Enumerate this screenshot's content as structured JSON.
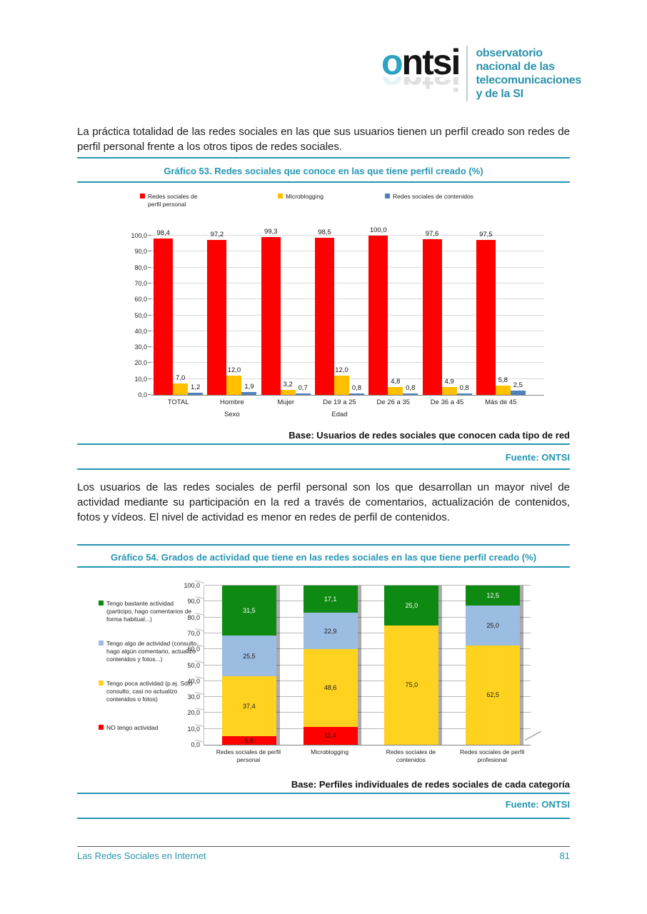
{
  "header": {
    "logo": {
      "brand_accent": "o",
      "brand_rest": "ntsi",
      "tagline_line1": "observatorio",
      "tagline_line2": "nacional de las",
      "tagline_line3": "telecomunicaciones",
      "tagline_line4": "y de la SI"
    }
  },
  "paragraphs": {
    "p1": "La práctica totalidad de las redes sociales en las que sus usuarios tienen un perfil creado son redes de perfil personal frente a los otros tipos de redes sociales.",
    "p2": "Los usuarios de las redes sociales de perfil personal son los que desarrollan un mayor nivel de actividad mediante su participación en la red a través de comentarios, actualización de contenidos, fotos y vídeos. El nivel de actividad es menor en redes de perfil de contenidos."
  },
  "footer": {
    "title": "Las Redes Sociales en Internet",
    "page_number": "81"
  },
  "colors": {
    "accent_teal": "#2496b2",
    "logo_accent": "#2ba3c4",
    "grid_gray": "#d9d9d9"
  },
  "chart_data": [
    {
      "id": "grafico_53",
      "type": "bar",
      "title": "Gráfico 53. Redes sociales que conoce en las que tiene perfil creado (%)",
      "ylim": [
        0,
        100
      ],
      "ytick_step": 10,
      "grid": true,
      "legend_position": "top",
      "categories": [
        "TOTAL",
        "Hombre",
        "Mujer",
        "De 19 a 25",
        "De 26 a 35",
        "De 36 a 45",
        "Más de 45"
      ],
      "axis_group_labels": {
        "1": "Sexo",
        "3": "Edad"
      },
      "series": [
        {
          "name": "Redes sociales de perfil personal",
          "color": "#ff0000",
          "values": [
            98.4,
            97.2,
            99.3,
            98.5,
            100.0,
            97.6,
            97.5
          ]
        },
        {
          "name": "Microblogging",
          "color": "#ffc000",
          "values": [
            7.0,
            12.0,
            3.2,
            12.0,
            4.8,
            4.9,
            5.8
          ]
        },
        {
          "name": "Redes sociales de contenidos",
          "color": "#4f81bd",
          "values": [
            1.2,
            1.9,
            0.7,
            0.8,
            0.8,
            0.8,
            2.5
          ]
        }
      ],
      "base_note": "Base: Usuarios de redes sociales  que conocen cada tipo de red",
      "source": "Fuente: ONTSI"
    },
    {
      "id": "grafico_54",
      "type": "stacked-bar-3d",
      "title": "Gráfico 54. Grados de actividad que tiene en las redes sociales en las que tiene perfil creado (%)",
      "ylim": [
        0,
        100
      ],
      "ytick_step": 10,
      "grid": true,
      "legend_position": "left",
      "categories": [
        "Redes sociales de perfil personal",
        "Microblogging",
        "Redes sociales de contenidos",
        "Redes sociales de perfil profesional"
      ],
      "series": [
        {
          "name": "NO tengo actividad",
          "color": "#ff0000",
          "label_color": "#1a1a1a",
          "values": [
            5.6,
            11.4,
            0,
            0
          ]
        },
        {
          "name": "Tengo poca actividad (p.ej. Sólo consulto, casi no actualizo contenidos o fotos)",
          "color": "#ffd21f",
          "label_color": "#1a1a1a",
          "values": [
            37.4,
            48.6,
            75.0,
            62.5
          ]
        },
        {
          "name": "Tengo algo de actividad (consulto, hago algún comentario, actualizo contenidos y fotos...)",
          "color": "#9cbde2",
          "label_color": "#1a1a1a",
          "values": [
            25.5,
            22.9,
            0,
            25.0
          ]
        },
        {
          "name": "Tengo bastante actividad (participo, hago comentarios de forma habitual...)",
          "color": "#0e8a12",
          "label_color": "#ffffff",
          "values": [
            31.5,
            17.1,
            25.0,
            12.5
          ]
        }
      ],
      "legend_order": [
        3,
        2,
        1,
        0
      ],
      "base_note": "Base: Perfiles individuales de redes sociales de cada categoría",
      "source": "Fuente: ONTSI"
    }
  ]
}
